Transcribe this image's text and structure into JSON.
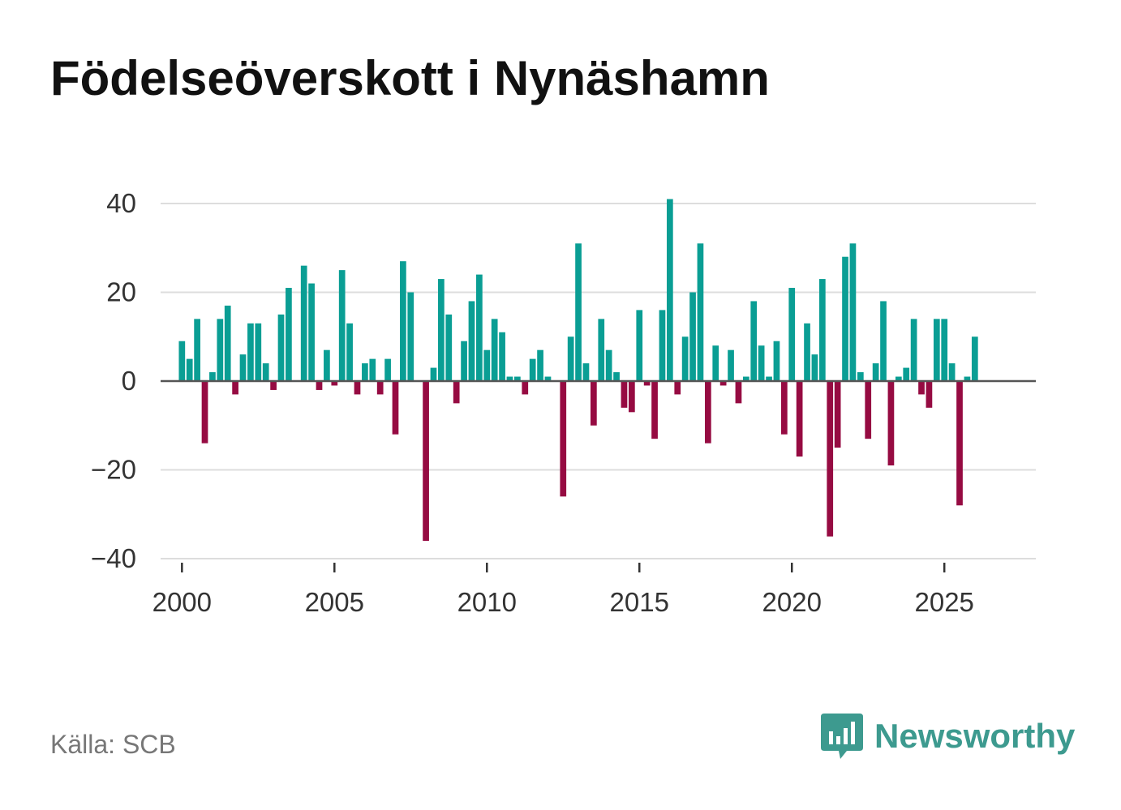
{
  "title": "Födelseöverskott i Nynäshamn",
  "source": "Källa: SCB",
  "brand": {
    "name": "Newsworthy",
    "icon": "newsworthy-logo-icon",
    "color": "#3d9a8f"
  },
  "colors": {
    "positive": "#0a9e94",
    "negative": "#960b42",
    "grid": "#dddddd",
    "zero": "#555555"
  },
  "chart_data": {
    "type": "bar",
    "title": "Födelseöverskott i Nynäshamn",
    "xlabel": "",
    "ylabel": "",
    "x_start": 2000.0,
    "x_step": 0.25,
    "xlim": [
      1999.3,
      2028.0
    ],
    "ylim": [
      -40,
      40
    ],
    "yticks": [
      40,
      20,
      0,
      -20,
      -40
    ],
    "ytick_labels": [
      "40",
      "20",
      "0",
      "−20",
      "−40"
    ],
    "xticks": [
      2000,
      2005,
      2010,
      2015,
      2020,
      2025
    ],
    "xtick_labels": [
      "2000",
      "2005",
      "2010",
      "2015",
      "2020",
      "2025"
    ],
    "grid": true,
    "values": [
      9,
      5,
      14,
      -14,
      2,
      14,
      17,
      -3,
      6,
      13,
      13,
      4,
      -2,
      15,
      21,
      0,
      26,
      22,
      -2,
      7,
      -1,
      25,
      13,
      -3,
      4,
      5,
      -3,
      5,
      -12,
      27,
      20,
      0,
      -36,
      3,
      23,
      15,
      -5,
      9,
      18,
      24,
      7,
      14,
      11,
      1,
      1,
      -3,
      5,
      7,
      1,
      0,
      -26,
      10,
      31,
      4,
      -10,
      14,
      7,
      2,
      -6,
      -7,
      16,
      -1,
      -13,
      16,
      41,
      -3,
      10,
      20,
      31,
      -14,
      8,
      -1,
      7,
      -5,
      1,
      18,
      8,
      1,
      9,
      -12,
      21,
      -17,
      13,
      6,
      23,
      -35,
      -15,
      28,
      31,
      2,
      -13,
      4,
      18,
      -19,
      1,
      3,
      14,
      -3,
      -6,
      14,
      14,
      4,
      -28,
      1,
      10
    ]
  }
}
